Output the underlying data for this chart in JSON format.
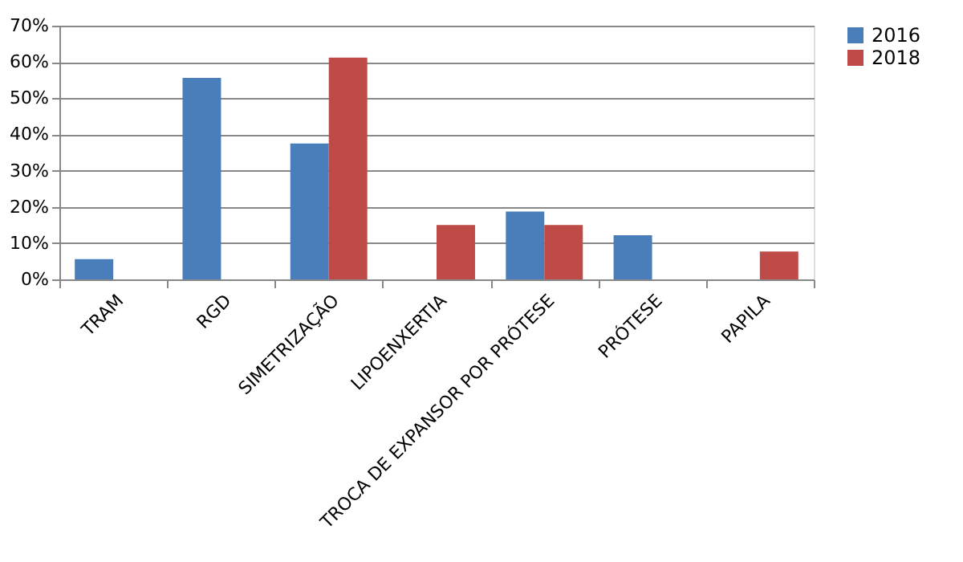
{
  "chart_data": {
    "type": "bar",
    "categories": [
      "TRAM",
      "RGD",
      "SIMETRIZAÇÃO",
      "LIPOENXERTIA",
      "TROCA DE EXPANSOR POR PRÓTESE",
      "PRÓTESE",
      "PAPILA"
    ],
    "series": [
      {
        "name": "2016",
        "color": "#4a7ebb",
        "values": [
          5.6,
          55.6,
          37.5,
          null,
          18.7,
          12.2,
          null
        ]
      },
      {
        "name": "2018",
        "color": "#be4b48",
        "values": [
          null,
          null,
          61.2,
          15.0,
          15.0,
          null,
          7.7
        ]
      }
    ],
    "ylim": [
      0,
      70
    ],
    "yticks": [
      {
        "value": 0,
        "label": "0%"
      },
      {
        "value": 10,
        "label": "10%"
      },
      {
        "value": 20,
        "label": "20%"
      },
      {
        "value": 30,
        "label": "30%"
      },
      {
        "value": 40,
        "label": "40%"
      },
      {
        "value": 50,
        "label": "50%"
      },
      {
        "value": 60,
        "label": "60%"
      },
      {
        "value": 70,
        "label": "70%"
      }
    ],
    "grid": "y",
    "legend": "right"
  }
}
